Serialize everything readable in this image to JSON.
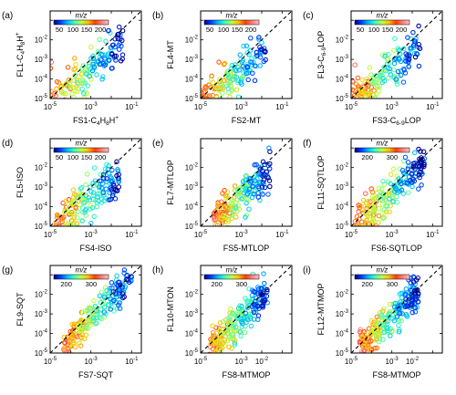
{
  "chart_data": [
    {
      "panel": "(a)",
      "type": "scatter",
      "log_scale": true,
      "xlabel": {
        "main": "FS1-C",
        "sub": "4",
        "mid": "H",
        "sub2": "8",
        "tail": "H",
        "sup": "+"
      },
      "ylabel": {
        "main": "FL1-C",
        "sub": "4",
        "mid": "H",
        "sub2": "8",
        "tail": "H",
        "sup": "+"
      },
      "xlim": [
        1e-05,
        0.3
      ],
      "ylim": [
        1e-05,
        0.3
      ],
      "xticks": [
        "10",
        "10",
        "10"
      ],
      "xtick_exps": [
        "-5",
        "-3",
        "-1"
      ],
      "yticks": [
        "10",
        "10",
        "10",
        "10"
      ],
      "ytick_exps": [
        "-5",
        "-4",
        "-3",
        "-2"
      ],
      "colorbar": {
        "title": "m/z",
        "ticks": [
          "50",
          "100",
          "150",
          "200"
        ],
        "min": 30,
        "max": 230
      },
      "one_to_one_line": true,
      "points": {
        "seed": 11,
        "count": 170,
        "x_range": [
          -5.2,
          -1.4
        ],
        "slope": 0.85,
        "offset": -0.9,
        "spread": 0.55,
        "mz_min": 40,
        "mz_max": 220
      }
    },
    {
      "panel": "(b)",
      "type": "scatter",
      "log_scale": true,
      "xlabel": {
        "main": "FS2-MT"
      },
      "ylabel": {
        "main": "FL4-MT"
      },
      "xlim": [
        1e-05,
        0.3
      ],
      "ylim": [
        1e-05,
        0.3
      ],
      "xticks": [
        "10",
        "10",
        "10"
      ],
      "xtick_exps": [
        "-5",
        "-3",
        "-1"
      ],
      "yticks": [
        "10",
        "10",
        "10",
        "10"
      ],
      "ytick_exps": [
        "-5",
        "-4",
        "-3",
        "-2"
      ],
      "colorbar": {
        "title": "m/z",
        "ticks": [
          "50",
          "100",
          "150",
          "200"
        ],
        "min": 30,
        "max": 230
      },
      "one_to_one_line": true,
      "points": {
        "seed": 23,
        "count": 170,
        "x_range": [
          -5.0,
          -1.8
        ],
        "slope": 0.75,
        "offset": -1.3,
        "spread": 0.5,
        "mz_min": 40,
        "mz_max": 220
      }
    },
    {
      "panel": "(c)",
      "type": "scatter",
      "log_scale": true,
      "xlabel": {
        "main": "FS3-C",
        "sub": "6-9",
        "tail": "LOP"
      },
      "ylabel": {
        "main": "FL3-C",
        "sub": "6-9",
        "tail": "LOP"
      },
      "xlim": [
        1e-05,
        0.3
      ],
      "ylim": [
        1e-05,
        0.3
      ],
      "xticks": [
        "10",
        "10",
        "10"
      ],
      "xtick_exps": [
        "-5",
        "-3",
        "-1"
      ],
      "yticks": [
        "10",
        "10",
        "10",
        "10"
      ],
      "ytick_exps": [
        "-5",
        "-4",
        "-3",
        "-2"
      ],
      "colorbar": {
        "title": "m/z",
        "ticks": [
          "50",
          "100",
          "150",
          "200"
        ],
        "min": 30,
        "max": 230
      },
      "one_to_one_line": true,
      "points": {
        "seed": 37,
        "count": 180,
        "x_range": [
          -5.0,
          -1.6
        ],
        "slope": 0.8,
        "offset": -1.1,
        "spread": 0.55,
        "mz_min": 40,
        "mz_max": 220
      }
    },
    {
      "panel": "(d)",
      "type": "scatter",
      "log_scale": true,
      "xlabel": {
        "main": "FS4-ISO"
      },
      "ylabel": {
        "main": "FL5-ISO"
      },
      "xlim": [
        1e-05,
        0.3
      ],
      "ylim": [
        1e-05,
        0.3
      ],
      "xticks": [
        "10",
        "10",
        "10"
      ],
      "xtick_exps": [
        "-5",
        "-3",
        "-1"
      ],
      "yticks": [
        "10",
        "10",
        "10",
        "10"
      ],
      "ytick_exps": [
        "-5",
        "-4",
        "-3",
        "-2"
      ],
      "colorbar": {
        "title": "m/z",
        "ticks": [
          "50",
          "100",
          "150",
          "200"
        ],
        "min": 30,
        "max": 230
      },
      "one_to_one_line": true,
      "points": {
        "seed": 41,
        "count": 180,
        "x_range": [
          -4.8,
          -1.6
        ],
        "slope": 0.8,
        "offset": -1.2,
        "spread": 0.55,
        "mz_min": 40,
        "mz_max": 220
      }
    },
    {
      "panel": "(e)",
      "type": "scatter",
      "log_scale": true,
      "xlabel": {
        "main": "FS5-MTLOP"
      },
      "ylabel": {
        "main": "FL7-MTLOP"
      },
      "xlim": [
        1e-05,
        0.3
      ],
      "ylim": [
        1e-05,
        0.3
      ],
      "xticks": [
        "10",
        "10",
        "10"
      ],
      "xtick_exps": [
        "-5",
        "-3",
        "-1"
      ],
      "yticks": [
        "10",
        "10",
        "10",
        "10"
      ],
      "ytick_exps": [
        "-5",
        "-4",
        "-3",
        "-2"
      ],
      "colorbar": null,
      "one_to_one_line": true,
      "points": {
        "seed": 53,
        "count": 200,
        "x_range": [
          -4.4,
          -1.6
        ],
        "slope": 0.95,
        "offset": -0.6,
        "spread": 0.5,
        "mz_min": 40,
        "mz_max": 220
      }
    },
    {
      "panel": "(f)",
      "type": "scatter",
      "log_scale": true,
      "xlabel": {
        "main": "FS6-SQTLOP"
      },
      "ylabel": {
        "main": "FL11-SQTLOP"
      },
      "xlim": [
        1e-05,
        0.3
      ],
      "ylim": [
        1e-05,
        0.3
      ],
      "xticks": [
        "10",
        "10",
        "10"
      ],
      "xtick_exps": [
        "-5",
        "-3",
        "-1"
      ],
      "yticks": [
        "10",
        "10",
        "10",
        "10"
      ],
      "ytick_exps": [
        "-5",
        "-4",
        "-3",
        "-2"
      ],
      "colorbar": {
        "title": "m/z",
        "ticks": [
          "200",
          "300"
        ],
        "min": 150,
        "max": 370
      },
      "one_to_one_line": true,
      "points": {
        "seed": 67,
        "count": 220,
        "x_range": [
          -4.8,
          -1.4
        ],
        "slope": 1.0,
        "offset": -0.3,
        "spread": 0.45,
        "mz_min": 160,
        "mz_max": 360
      }
    },
    {
      "panel": "(g)",
      "type": "scatter",
      "log_scale": true,
      "xlabel": {
        "main": "FS7-SQT"
      },
      "ylabel": {
        "main": "FL9-SQT"
      },
      "xlim": [
        1e-05,
        0.3
      ],
      "ylim": [
        1e-05,
        0.3
      ],
      "xticks": [
        "10",
        "10",
        "10"
      ],
      "xtick_exps": [
        "-5",
        "-3",
        "-1"
      ],
      "yticks": [
        "10",
        "10",
        "10",
        "10"
      ],
      "ytick_exps": [
        "-5",
        "-4",
        "-3",
        "-2"
      ],
      "colorbar": {
        "title": "m/z",
        "ticks": [
          "200",
          "300"
        ],
        "min": 150,
        "max": 370
      },
      "one_to_one_line": true,
      "points": {
        "seed": 79,
        "count": 200,
        "x_range": [
          -4.4,
          -1.0
        ],
        "slope": 1.05,
        "offset": -0.1,
        "spread": 0.4,
        "mz_min": 160,
        "mz_max": 360
      }
    },
    {
      "panel": "(h)",
      "type": "scatter",
      "log_scale": true,
      "xlabel": {
        "main": "FS8-MTMOP"
      },
      "ylabel": {
        "main": "FL10-MTON"
      },
      "xlim": [
        1e-05,
        0.3
      ],
      "ylim": [
        1e-05,
        0.3
      ],
      "xticks": [
        "10",
        "10",
        "10"
      ],
      "xtick_exps": [
        "-5",
        "-3",
        "-2"
      ],
      "yticks": [
        "10",
        "10",
        "10",
        "10"
      ],
      "ytick_exps": [
        "-5",
        "-4",
        "-3",
        "-2"
      ],
      "colorbar": {
        "title": "m/z",
        "ticks": [
          "200",
          "300"
        ],
        "min": 150,
        "max": 370
      },
      "one_to_one_line": true,
      "points": {
        "seed": 89,
        "count": 240,
        "x_range": [
          -4.6,
          -1.7
        ],
        "slope": 1.0,
        "offset": -0.2,
        "spread": 0.45,
        "mz_min": 160,
        "mz_max": 360
      }
    },
    {
      "panel": "(i)",
      "type": "scatter",
      "log_scale": true,
      "xlabel": {
        "main": "FS8-MTMOP"
      },
      "ylabel": {
        "main": "FL12-MTMOP"
      },
      "xlim": [
        1e-05,
        0.3
      ],
      "ylim": [
        1e-05,
        0.3
      ],
      "xticks": [
        "10",
        "10",
        "10"
      ],
      "xtick_exps": [
        "-5",
        "-3",
        "-2"
      ],
      "yticks": [
        "10",
        "10",
        "10",
        "10"
      ],
      "ytick_exps": [
        "-5",
        "-4",
        "-3",
        "-2"
      ],
      "colorbar": {
        "title": "m/z",
        "ticks": [
          "200",
          "300"
        ],
        "min": 150,
        "max": 370
      },
      "one_to_one_line": true,
      "points": {
        "seed": 97,
        "count": 240,
        "x_range": [
          -4.6,
          -1.7
        ],
        "slope": 1.0,
        "offset": -0.1,
        "spread": 0.45,
        "mz_min": 160,
        "mz_max": 360
      }
    }
  ],
  "colormap": [
    "#00008f",
    "#0040ff",
    "#00bfff",
    "#40ffbf",
    "#bfff40",
    "#ffbf00",
    "#ff4000",
    "#ff8080",
    "#ffc0c0"
  ]
}
